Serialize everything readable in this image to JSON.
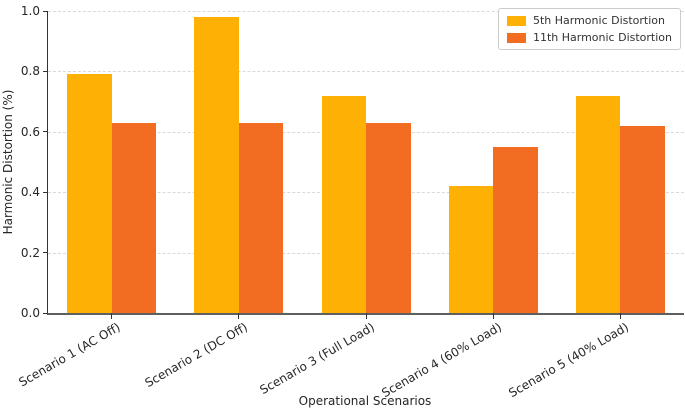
{
  "chart_data": {
    "type": "bar",
    "title": "",
    "xlabel": "Operational Scenarios",
    "ylabel": "Harmonic Distortion (%)",
    "categories": [
      "Scenario 1 (AC Off)",
      "Scenario 2 (DC Off)",
      "Scenario 3 (Full Load)",
      "Scenario 4 (60% Load)",
      "Scenario 5 (40% Load)"
    ],
    "series": [
      {
        "name": "5th Harmonic Distortion",
        "color": "#FFB005",
        "values": [
          0.79,
          0.98,
          0.72,
          0.42,
          0.72
        ]
      },
      {
        "name": "11th Harmonic Distortion",
        "color": "#F26C22",
        "values": [
          0.63,
          0.63,
          0.63,
          0.55,
          0.62
        ]
      }
    ],
    "ylim": [
      0.0,
      1.0
    ],
    "yticks": [
      0.0,
      0.2,
      0.4,
      0.6,
      0.8,
      1.0
    ],
    "ytick_format_decimals": 1,
    "grid": true,
    "grid_style": "dashed",
    "legend_position": "upper right"
  }
}
